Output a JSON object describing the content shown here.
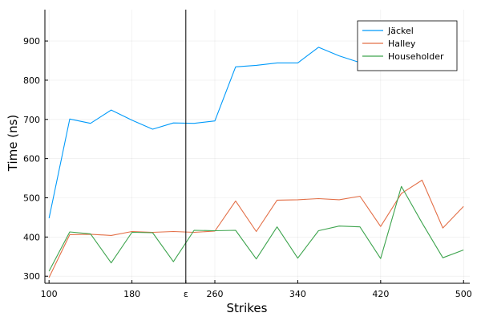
{
  "chart_data": {
    "type": "line",
    "xlabel": "Strikes",
    "ylabel": "Time (ns)",
    "xlim": [
      96,
      506
    ],
    "ylim": [
      282,
      980
    ],
    "x_ticks": [
      {
        "value": 100,
        "label": "100"
      },
      {
        "value": 180,
        "label": "180"
      },
      {
        "value": 232,
        "label": "ε"
      },
      {
        "value": 260,
        "label": "260"
      },
      {
        "value": 340,
        "label": "340"
      },
      {
        "value": 420,
        "label": "420"
      },
      {
        "value": 500,
        "label": "500"
      }
    ],
    "y_ticks": [
      300,
      400,
      500,
      600,
      700,
      800,
      900
    ],
    "grid": true,
    "legend_position": "top-right",
    "vertical_line": {
      "x": 232
    },
    "x": [
      100,
      120,
      140,
      160,
      180,
      200,
      220,
      240,
      260,
      280,
      300,
      320,
      340,
      360,
      380,
      400,
      420,
      440,
      460,
      480,
      500
    ],
    "series": [
      {
        "name": "Jäckel",
        "color": "#009AFA",
        "values": [
          448,
          701,
          690,
          724,
          698,
          675,
          691,
          690,
          696,
          834,
          838,
          844,
          844,
          884,
          862,
          845,
          null,
          null,
          null,
          null,
          962
        ]
      },
      {
        "name": "Halley",
        "color": "#E36F47",
        "values": [
          297,
          406,
          407,
          404,
          414,
          412,
          414,
          412,
          415,
          492,
          414,
          494,
          495,
          498,
          495,
          504,
          427,
          511,
          545,
          423,
          478
        ]
      },
      {
        "name": "Householder",
        "color": "#3EA44E",
        "values": [
          313,
          413,
          408,
          334,
          412,
          411,
          337,
          417,
          416,
          417,
          344,
          426,
          346,
          416,
          428,
          426,
          345,
          529,
          436,
          347,
          367
        ]
      }
    ]
  }
}
